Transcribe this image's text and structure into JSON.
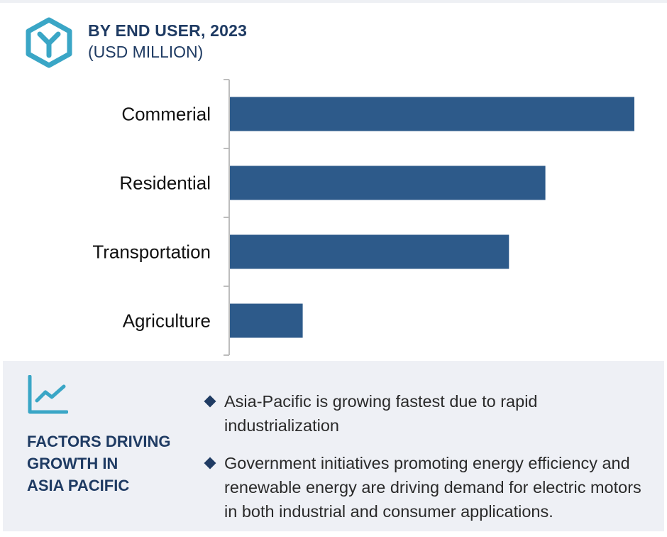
{
  "header": {
    "title": "BY END USER, 2023",
    "subtitle": "(USD MILLION)",
    "logo_icon": "hexagon-y-logo-icon",
    "accent_color": "#3aa6c6",
    "text_color": "#1f3b63"
  },
  "chart_data": {
    "type": "bar",
    "orientation": "horizontal",
    "categories": [
      "Commerial",
      "Residential",
      "Transportation",
      "Agriculture"
    ],
    "values": [
      100,
      78,
      69,
      18
    ],
    "value_axis": "hidden",
    "bar_color": "#2d5a8a",
    "grid": false,
    "legend": "none"
  },
  "panel": {
    "icon": "line-chart-growth-icon",
    "heading_lines": [
      "FACTORS DRIVING",
      "GROWTH IN",
      "ASIA PACIFIC"
    ],
    "bullets": [
      "Asia-Pacific is growing fastest due to rapid industrialization",
      "Government initiatives promoting energy efficiency and renewable energy are driving demand for electric motors in both industrial and consumer applications."
    ]
  }
}
